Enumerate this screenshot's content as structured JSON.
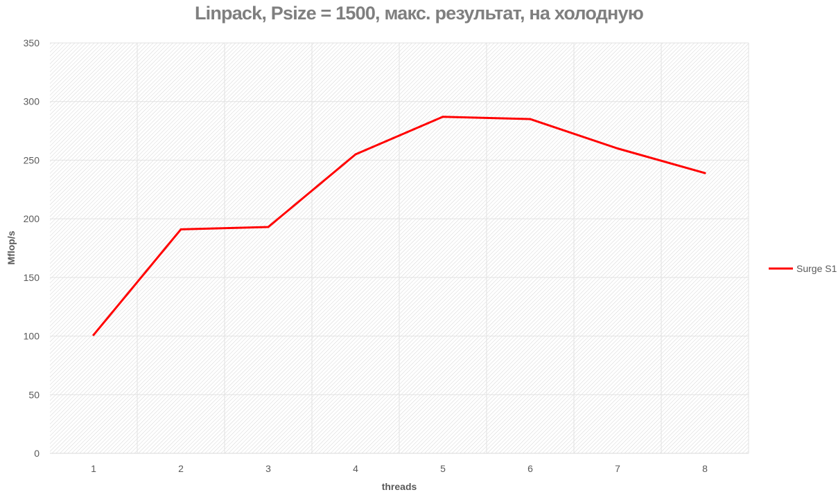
{
  "chart_data": {
    "type": "line",
    "title": "Linpack, Psize = 1500, макс. результат, на холодную",
    "xlabel": "threads",
    "ylabel": "Mflop/s",
    "categories": [
      "1",
      "2",
      "3",
      "4",
      "5",
      "6",
      "7",
      "8"
    ],
    "yticks": [
      "0",
      "50",
      "100",
      "150",
      "200",
      "250",
      "300",
      "350"
    ],
    "ylim": [
      0,
      350
    ],
    "grid": true,
    "legend_position": "right",
    "series": [
      {
        "name": "Surge S1",
        "color": "#ff0000",
        "values": [
          101,
          191,
          193,
          255,
          287,
          285,
          260,
          239
        ]
      }
    ]
  }
}
